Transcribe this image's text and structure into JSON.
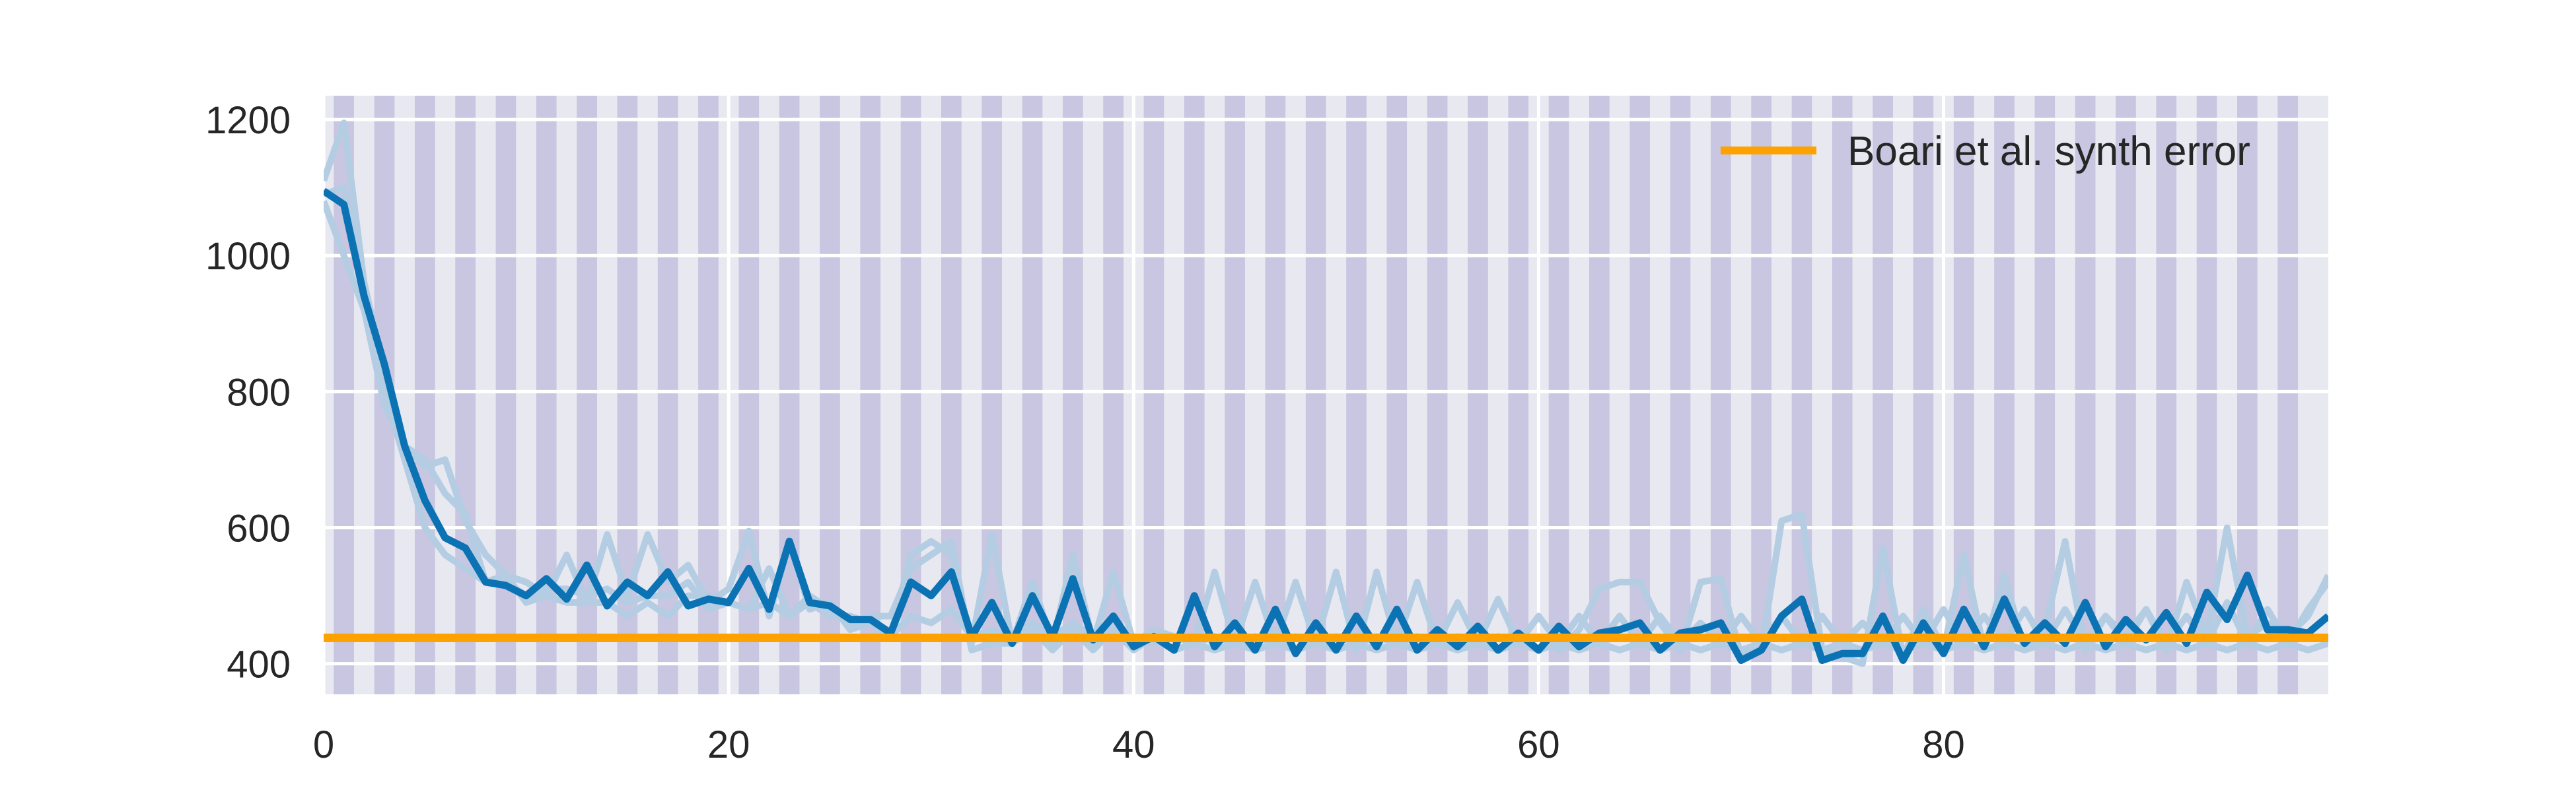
{
  "chart_data": {
    "type": "line",
    "title": "",
    "xlabel": "",
    "ylabel": "",
    "xlim": [
      0,
      99
    ],
    "ylim": [
      355,
      1235
    ],
    "x_ticks": [
      0,
      20,
      40,
      60,
      80
    ],
    "y_ticks": [
      400,
      600,
      800,
      1000,
      1200
    ],
    "grid": true,
    "legend_position": "top-right",
    "shaded_bands": {
      "description_free": true,
      "intervals": [
        [
          1,
          2
        ],
        [
          3,
          4
        ],
        [
          5,
          6
        ],
        [
          7,
          8
        ],
        [
          9,
          10
        ],
        [
          11,
          12
        ],
        [
          13,
          14
        ],
        [
          15,
          16
        ],
        [
          17,
          18
        ],
        [
          19,
          20
        ],
        [
          21,
          22
        ],
        [
          23,
          24
        ],
        [
          25,
          26
        ],
        [
          27,
          28
        ],
        [
          29,
          30
        ],
        [
          31,
          32
        ],
        [
          33,
          34
        ],
        [
          35,
          36
        ],
        [
          37,
          38
        ],
        [
          39,
          40
        ],
        [
          41,
          42
        ],
        [
          43,
          44
        ],
        [
          45,
          46
        ],
        [
          47,
          48
        ],
        [
          49,
          50
        ],
        [
          51,
          52
        ],
        [
          53,
          54
        ],
        [
          55,
          56
        ],
        [
          57,
          58
        ],
        [
          59,
          60
        ],
        [
          61,
          62
        ],
        [
          63,
          64
        ],
        [
          65,
          66
        ],
        [
          67,
          68
        ],
        [
          69,
          70
        ],
        [
          71,
          72
        ],
        [
          73,
          74
        ],
        [
          75,
          76
        ],
        [
          77,
          78
        ],
        [
          79,
          80
        ],
        [
          81,
          82
        ],
        [
          83,
          84
        ],
        [
          85,
          86
        ],
        [
          87,
          88
        ],
        [
          89,
          90
        ],
        [
          91,
          92
        ],
        [
          93,
          94
        ],
        [
          95,
          96
        ],
        [
          97,
          98
        ]
      ],
      "color": "#c8c6e0"
    },
    "series": [
      {
        "role": "faint-run-1",
        "color": "#b4cde3",
        "x_start": 0,
        "values": [
          1110,
          1195,
          960,
          830,
          720,
          690,
          700,
          610,
          560,
          530,
          520,
          500,
          560,
          490,
          590,
          500,
          590,
          520,
          545,
          490,
          510,
          595,
          470,
          580,
          480,
          490,
          450,
          460,
          440,
          560,
          580,
          560,
          430,
          590,
          430,
          520,
          430,
          560,
          430,
          535,
          430,
          450,
          440,
          430,
          535,
          430,
          520,
          430,
          520,
          430,
          535,
          420,
          535,
          430,
          520,
          430,
          490,
          430,
          495,
          430,
          470,
          430,
          470,
          430,
          470,
          430,
          470,
          430,
          460,
          430,
          470,
          430,
          470,
          430,
          470,
          430,
          460,
          430,
          470,
          430,
          480,
          430,
          470,
          430,
          480,
          430,
          480,
          430,
          470,
          430,
          480,
          430,
          470,
          430,
          490,
          430,
          480,
          430,
          480,
          520
        ]
      },
      {
        "role": "faint-run-2",
        "color": "#b4cde3",
        "x_start": 0,
        "values": [
          1080,
          1000,
          920,
          780,
          720,
          700,
          650,
          620,
          520,
          530,
          490,
          500,
          490,
          490,
          490,
          470,
          490,
          470,
          500,
          500,
          490,
          480,
          490,
          470,
          500,
          480,
          460,
          470,
          470,
          540,
          560,
          580,
          420,
          430,
          430,
          450,
          420,
          450,
          420,
          450,
          420,
          440,
          420,
          430,
          420,
          430,
          420,
          430,
          420,
          430,
          420,
          430,
          420,
          430,
          420,
          430,
          420,
          430,
          420,
          430,
          420,
          430,
          420,
          430,
          420,
          430,
          420,
          430,
          420,
          430,
          420,
          430,
          420,
          430,
          420,
          430,
          420,
          430,
          420,
          430,
          420,
          430,
          420,
          430,
          420,
          430,
          420,
          430,
          420,
          430,
          420,
          430,
          420,
          430,
          420,
          430,
          420,
          430,
          420,
          430
        ]
      },
      {
        "role": "faint-run-3",
        "color": "#b4cde3",
        "x_start": 0,
        "values": [
          1090,
          1100,
          950,
          800,
          700,
          600,
          560,
          540,
          520,
          520,
          500,
          510,
          510,
          500,
          510,
          490,
          500,
          500,
          520,
          480,
          490,
          480,
          540,
          470,
          490,
          470,
          470,
          460,
          440,
          470,
          460,
          480,
          440,
          450,
          440,
          460,
          440,
          460,
          440,
          450,
          440,
          430,
          440,
          430,
          440,
          430,
          440,
          430,
          440,
          430,
          440,
          430,
          440,
          430,
          440,
          430,
          440,
          430,
          440,
          430,
          440,
          420,
          450,
          510,
          520,
          520,
          460,
          420,
          520,
          525,
          410,
          420,
          610,
          620,
          420,
          410,
          400,
          570,
          410,
          480,
          420,
          560,
          420,
          530,
          420,
          450,
          580,
          420,
          470,
          440,
          480,
          420,
          520,
          440,
          600,
          440,
          460,
          440,
          470,
          530
        ]
      },
      {
        "role": "main",
        "color": "#0b72b4",
        "x_start": 0,
        "values": [
          1095,
          1075,
          940,
          840,
          720,
          640,
          585,
          570,
          520,
          515,
          500,
          525,
          495,
          545,
          485,
          520,
          500,
          535,
          485,
          495,
          490,
          540,
          480,
          580,
          490,
          485,
          465,
          465,
          445,
          520,
          500,
          535,
          440,
          490,
          430,
          500,
          440,
          525,
          435,
          470,
          425,
          440,
          420,
          500,
          425,
          460,
          420,
          480,
          415,
          460,
          420,
          470,
          425,
          480,
          420,
          450,
          425,
          455,
          420,
          445,
          420,
          455,
          425,
          445,
          450,
          460,
          420,
          445,
          450,
          460,
          405,
          420,
          470,
          495,
          405,
          415,
          415,
          470,
          405,
          460,
          415,
          480,
          425,
          495,
          430,
          460,
          430,
          490,
          425,
          465,
          435,
          475,
          430,
          505,
          465,
          530,
          450,
          450,
          445,
          470
        ]
      },
      {
        "name": "Boari et al. synth error",
        "role": "baseline",
        "color": "#ffa200",
        "constant_value": 438
      }
    ]
  }
}
